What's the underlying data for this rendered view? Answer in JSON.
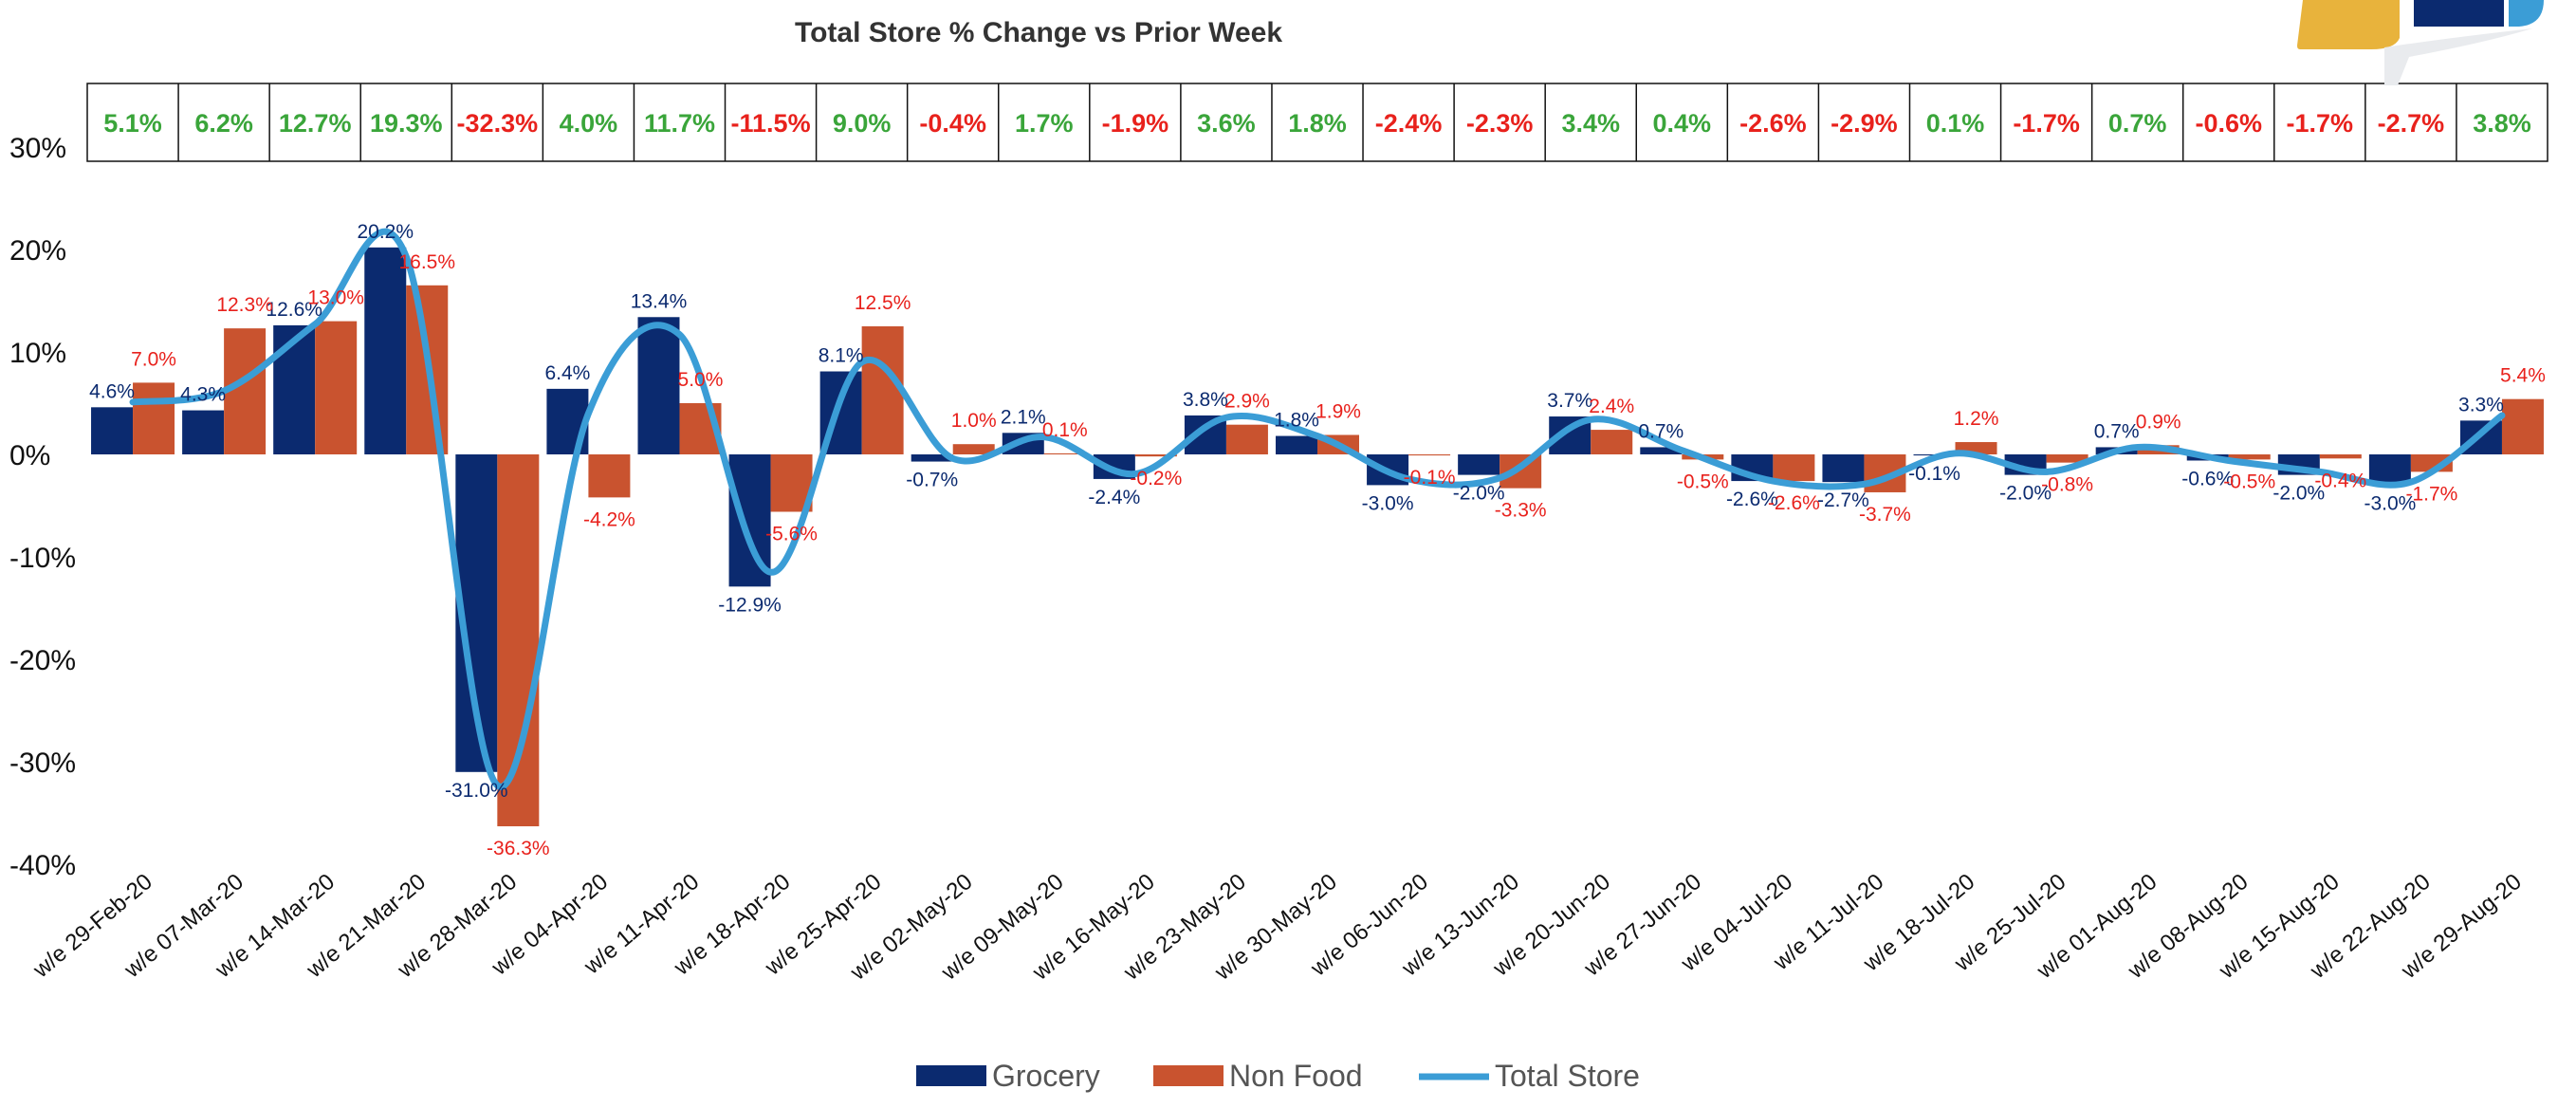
{
  "colors": {
    "grocery": "#0b2a6f",
    "non_food": "#c9532f",
    "total_store": "#3b9dd6",
    "positive_text": "#3aa53a",
    "negative_text": "#e8211c",
    "grocery_label": "#0b2a6f",
    "non_food_label": "#e8211c",
    "logo_gold": "#e8b33c",
    "logo_navy": "#0b2a6f",
    "logo_blue": "#3b9dd6"
  },
  "chart_data": {
    "type": "bar",
    "title": "Total Store % Change vs Prior Week",
    "xlabel": "",
    "ylabel": "",
    "ylim": [
      -40,
      30
    ],
    "yticks": [
      30,
      20,
      10,
      0,
      -10,
      -20,
      -30,
      -40
    ],
    "ytick_labels": [
      "30%",
      "20%",
      "10%",
      "0%",
      "-10%",
      "-20%",
      "-30%",
      "-40%"
    ],
    "grid": false,
    "legend_position": "bottom-center",
    "categories": [
      "w/e 29-Feb-20",
      "w/e 07-Mar-20",
      "w/e 14-Mar-20",
      "w/e 21-Mar-20",
      "w/e 28-Mar-20",
      "w/e 04-Apr-20",
      "w/e 11-Apr-20",
      "w/e 18-Apr-20",
      "w/e 25-Apr-20",
      "w/e 02-May-20",
      "w/e 09-May-20",
      "w/e 16-May-20",
      "w/e 23-May-20",
      "w/e 30-May-20",
      "w/e 06-Jun-20",
      "w/e 13-Jun-20",
      "w/e 20-Jun-20",
      "w/e 27-Jun-20",
      "w/e 04-Jul-20",
      "w/e 11-Jul-20",
      "w/e 18-Jul-20",
      "w/e 25-Jul-20",
      "w/e 01-Aug-20",
      "w/e 08-Aug-20",
      "w/e 15-Aug-20",
      "w/e 22-Aug-20",
      "w/e 29-Aug-20"
    ],
    "series": [
      {
        "name": "Grocery",
        "type": "bar",
        "values": [
          4.6,
          4.3,
          12.6,
          20.2,
          -31.0,
          6.4,
          13.4,
          -12.9,
          8.1,
          -0.7,
          2.1,
          -2.4,
          3.8,
          1.8,
          -3.0,
          -2.0,
          3.7,
          0.7,
          -2.6,
          -2.7,
          -0.1,
          -2.0,
          0.7,
          -0.6,
          -2.0,
          -3.0,
          3.3
        ],
        "labels": [
          "4.6%",
          "4.3%",
          "12.6%",
          "20.2%",
          "-31.0%",
          "6.4%",
          "13.4%",
          "-12.9%",
          "8.1%",
          "-0.7%",
          "2.1%",
          "-2.4%",
          "3.8%",
          "1.8%",
          "-3.0%",
          "-2.0%",
          "3.7%",
          "0.7%",
          "-2.6%",
          "-2.7%",
          "-0.1%",
          "-2.0%",
          "0.7%",
          "-0.6%",
          "-2.0%",
          "-3.0%",
          "3.3%"
        ]
      },
      {
        "name": "Non Food",
        "type": "bar",
        "values": [
          7.0,
          12.3,
          13.0,
          16.5,
          -36.3,
          -4.2,
          5.0,
          -5.6,
          12.5,
          1.0,
          0.1,
          -0.2,
          2.9,
          1.9,
          -0.1,
          -3.3,
          2.4,
          -0.5,
          -2.6,
          -3.7,
          1.2,
          -0.8,
          0.9,
          -0.5,
          -0.4,
          -1.7,
          5.4
        ],
        "labels": [
          "7.0%",
          "12.3%",
          "13.0%",
          "16.5%",
          "-36.3%",
          "-4.2%",
          "5.0%",
          "-5.6%",
          "12.5%",
          "1.0%",
          "0.1%",
          "-0.2%",
          "2.9%",
          "1.9%",
          "-0.1%",
          "-3.3%",
          "2.4%",
          "-0.5%",
          "-2.6%",
          "-3.7%",
          "1.2%",
          "-0.8%",
          "0.9%",
          "-0.5%",
          "-0.4%",
          "-1.7%",
          "5.4%"
        ]
      },
      {
        "name": "Total Store",
        "type": "line",
        "values": [
          5.1,
          6.2,
          12.7,
          19.3,
          -32.3,
          4.0,
          11.7,
          -11.5,
          9.0,
          -0.4,
          1.7,
          -1.9,
          3.6,
          1.8,
          -2.4,
          -2.3,
          3.4,
          0.4,
          -2.6,
          -2.9,
          0.1,
          -1.7,
          0.7,
          -0.6,
          -1.7,
          -2.7,
          3.8
        ],
        "labels": [
          "5.1%",
          "6.2%",
          "12.7%",
          "19.3%",
          "-32.3%",
          "4.0%",
          "11.7%",
          "-11.5%",
          "9.0%",
          "-0.4%",
          "1.7%",
          "-1.9%",
          "3.6%",
          "1.8%",
          "-2.4%",
          "-2.3%",
          "3.4%",
          "0.4%",
          "-2.6%",
          "-2.9%",
          "0.1%",
          "-1.7%",
          "0.7%",
          "-0.6%",
          "-1.7%",
          "-2.7%",
          "3.8%"
        ]
      }
    ]
  }
}
